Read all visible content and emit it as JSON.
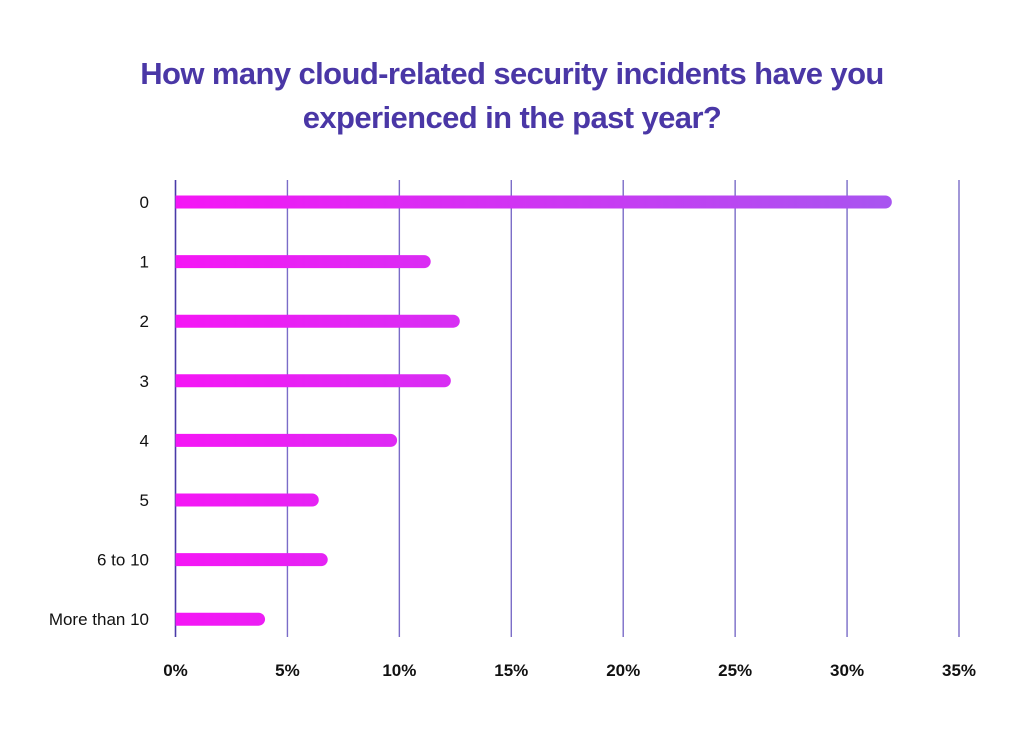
{
  "chart_data": {
    "type": "bar",
    "orientation": "horizontal",
    "title": "How many cloud-related security incidents have you experienced in the past year?",
    "title_lines": [
      "How many cloud-related security incidents have you",
      "experienced in the past year?"
    ],
    "categories": [
      "0",
      "1",
      "2",
      "3",
      "4",
      "5",
      "6 to 10",
      "More than 10"
    ],
    "values": [
      32.0,
      11.4,
      12.7,
      12.3,
      9.9,
      6.4,
      6.8,
      4.0
    ],
    "unit": "%",
    "xlabel": "",
    "ylabel": "",
    "xlim": [
      0,
      35
    ],
    "xticks": [
      0,
      5,
      10,
      15,
      20,
      25,
      30,
      35
    ],
    "xtick_labels": [
      "0%",
      "5%",
      "10%",
      "15%",
      "20%",
      "25%",
      "30%",
      "35%"
    ],
    "grid": "vertical",
    "legend": "none",
    "colors": {
      "title": "#4a37a6",
      "grid": "#7a6cc8",
      "axis": "#4a3aa8",
      "bar_gradient_start": "#f516f5",
      "bar_gradient_end": "#a855f0",
      "text": "#111111"
    }
  }
}
